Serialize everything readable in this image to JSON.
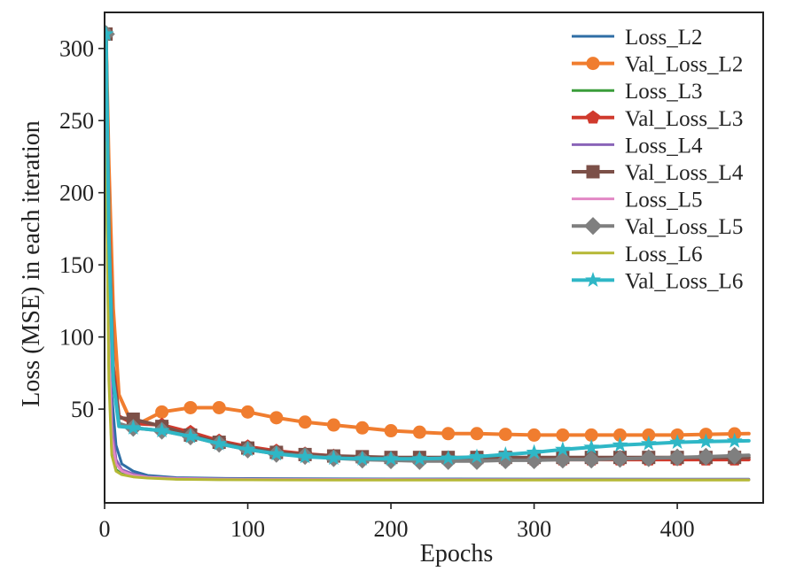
{
  "chart_data": {
    "type": "line",
    "title": "",
    "xlabel": "Epochs",
    "ylabel": "Loss (MSE) in each iteration",
    "xlim": [
      0,
      460
    ],
    "ylim": [
      -15,
      325
    ],
    "grid": false,
    "legend_position": "top-right",
    "x_ticks": [
      0,
      100,
      200,
      300,
      400
    ],
    "y_ticks": [
      50,
      100,
      150,
      200,
      250,
      300
    ],
    "marker_x": [
      1,
      20,
      40,
      60,
      80,
      100,
      120,
      140,
      160,
      180,
      200,
      220,
      240,
      260,
      280,
      300,
      320,
      340,
      360,
      380,
      400,
      420,
      440
    ],
    "series": [
      {
        "name": "Loss_L2",
        "color": "#2f6ea5",
        "marker": "none",
        "width": 3,
        "x": [
          1,
          3,
          5,
          8,
          12,
          20,
          30,
          50,
          80,
          120,
          200,
          300,
          450
        ],
        "y": [
          305,
          150,
          60,
          25,
          12,
          7,
          4,
          2.5,
          2,
          1.8,
          1.6,
          1.5,
          1.4
        ]
      },
      {
        "name": "Val_Loss_L2",
        "color": "#f07d2f",
        "marker": "circle",
        "width": 4,
        "x": [
          1,
          3,
          6,
          10,
          20,
          40,
          60,
          80,
          100,
          120,
          140,
          160,
          180,
          200,
          220,
          240,
          260,
          280,
          300,
          320,
          340,
          360,
          380,
          400,
          420,
          450
        ],
        "y": [
          310,
          220,
          120,
          60,
          38,
          48,
          51,
          51,
          48,
          44,
          41,
          39,
          37,
          35,
          34,
          33,
          33,
          32.5,
          32,
          32,
          32,
          32,
          32,
          32,
          32.5,
          33
        ]
      },
      {
        "name": "Loss_L3",
        "color": "#3a9d3a",
        "marker": "none",
        "width": 3,
        "x": [
          1,
          3,
          5,
          8,
          12,
          20,
          30,
          50,
          80,
          120,
          200,
          300,
          450
        ],
        "y": [
          235,
          80,
          20,
          8,
          5,
          3.5,
          2.5,
          1.5,
          1.2,
          1.1,
          1,
          1,
          1
        ]
      },
      {
        "name": "Val_Loss_L3",
        "color": "#d03a2d",
        "marker": "pentagon",
        "width": 4,
        "x": [
          1,
          3,
          6,
          10,
          20,
          40,
          60,
          80,
          100,
          120,
          140,
          160,
          180,
          200,
          220,
          240,
          260,
          280,
          300,
          320,
          340,
          360,
          380,
          400,
          420,
          450
        ],
        "y": [
          310,
          180,
          80,
          45,
          40,
          39,
          34,
          28,
          24,
          21,
          19,
          17.5,
          16.5,
          16,
          15.5,
          15.5,
          15,
          15,
          15,
          15,
          15,
          15,
          15,
          15,
          15,
          15
        ]
      },
      {
        "name": "Loss_L4",
        "color": "#8a64b8",
        "marker": "none",
        "width": 3,
        "x": [
          1,
          3,
          5,
          8,
          12,
          20,
          30,
          50,
          80,
          120,
          200,
          300,
          450
        ],
        "y": [
          305,
          120,
          40,
          15,
          8,
          5,
          3,
          2,
          1.6,
          1.4,
          1.2,
          1.1,
          1
        ]
      },
      {
        "name": "Val_Loss_L4",
        "color": "#7c5048",
        "marker": "square",
        "width": 4,
        "x": [
          1,
          3,
          6,
          10,
          20,
          40,
          60,
          80,
          100,
          120,
          140,
          160,
          180,
          200,
          220,
          240,
          260,
          280,
          300,
          320,
          340,
          360,
          380,
          400,
          420,
          450
        ],
        "y": [
          310,
          170,
          75,
          44,
          43,
          38,
          32,
          27,
          23,
          20,
          18.5,
          17.5,
          17,
          16.5,
          16.5,
          16.5,
          16.5,
          16.5,
          16.5,
          16.5,
          16.5,
          16.5,
          16.5,
          16.5,
          16.5,
          16.5
        ]
      },
      {
        "name": "Loss_L5",
        "color": "#e287c4",
        "marker": "none",
        "width": 3,
        "x": [
          1,
          3,
          5,
          8,
          12,
          20,
          30,
          50,
          80,
          120,
          200,
          300,
          450
        ],
        "y": [
          300,
          100,
          30,
          12,
          7,
          4,
          2.8,
          1.8,
          1.4,
          1.2,
          1.1,
          1,
          1
        ]
      },
      {
        "name": "Val_Loss_L5",
        "color": "#7f7f7f",
        "marker": "diamond",
        "width": 4,
        "x": [
          1,
          3,
          6,
          10,
          20,
          40,
          60,
          80,
          100,
          120,
          140,
          160,
          180,
          200,
          220,
          240,
          260,
          280,
          300,
          320,
          340,
          360,
          380,
          400,
          420,
          450
        ],
        "y": [
          310,
          170,
          70,
          40,
          37,
          35,
          31,
          26,
          22,
          19,
          17.5,
          16,
          15,
          14.5,
          14,
          14,
          14,
          14.5,
          14.5,
          15,
          15,
          15.5,
          16,
          16.5,
          17,
          18
        ]
      },
      {
        "name": "Loss_L6",
        "color": "#b5b835",
        "marker": "none",
        "width": 3,
        "x": [
          1,
          3,
          5,
          8,
          12,
          20,
          30,
          50,
          80,
          120,
          200,
          300,
          450
        ],
        "y": [
          235,
          70,
          18,
          7,
          4.5,
          3,
          2.2,
          1.3,
          1,
          0.9,
          0.8,
          0.8,
          0.8
        ]
      },
      {
        "name": "Val_Loss_L6",
        "color": "#2fb7c6",
        "marker": "star",
        "width": 4,
        "x": [
          1,
          3,
          6,
          10,
          20,
          40,
          60,
          80,
          100,
          120,
          140,
          160,
          180,
          200,
          220,
          240,
          260,
          280,
          300,
          320,
          340,
          360,
          380,
          400,
          420,
          450
        ],
        "y": [
          310,
          170,
          70,
          38,
          37,
          35,
          31,
          26,
          22,
          19,
          17,
          16,
          15.5,
          15.5,
          15.5,
          16,
          17,
          18.5,
          20,
          22,
          23.5,
          25,
          26,
          27,
          27.5,
          28
        ]
      }
    ]
  }
}
